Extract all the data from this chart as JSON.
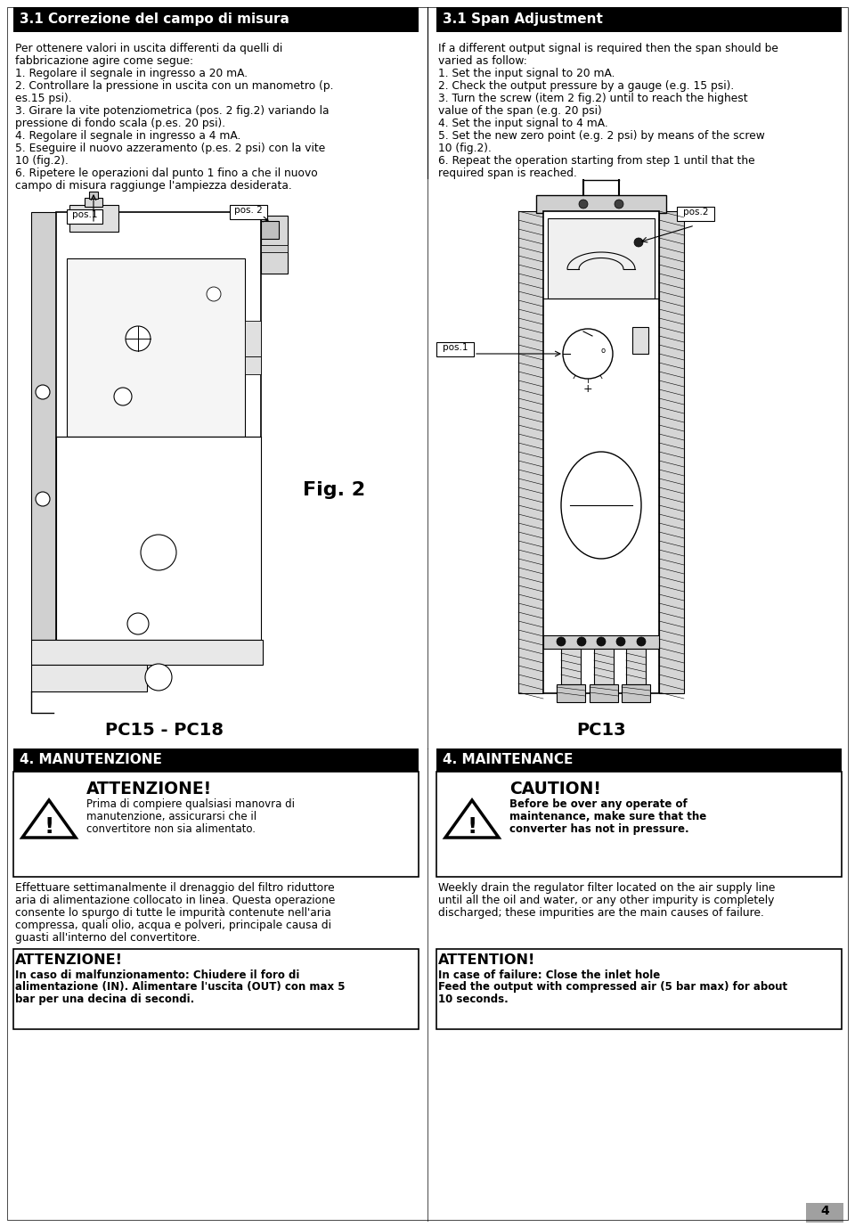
{
  "page_bg": "#ffffff",
  "col1_header": "3.1 Correzione del campo di misura",
  "col2_header": "3.1 Span Adjustment",
  "col1_body_lines": [
    "Per ottenere valori in uscita differenti da quelli di",
    "fabbricazione agire come segue:",
    "1. Regolare il segnale in ingresso a 20 mA.",
    "2. Controllare la pressione in uscita con un manometro (p.",
    "es.15 psi).",
    "3. Girare la vite potenziometrica (pos. 2 fig.2) variando la",
    "pressione di fondo scala (p.es. 20 psi).",
    "4. Regolare il segnale in ingresso a 4 mA.",
    "5. Eseguire il nuovo azzeramento (p.es. 2 psi) con la vite",
    "10 (fig.2).",
    "6. Ripetere le operazioni dal punto 1 fino a che il nuovo",
    "campo di misura raggiunge l'ampiezza desiderata."
  ],
  "col2_body_lines": [
    "If a different output signal is required then the span should be",
    "varied as follow:",
    "1. Set the input signal to 20 mA.",
    "2. Check the output pressure by a gauge (e.g. 15 psi).",
    "3. Turn the screw (item 2 fig.2) until to reach the highest",
    "value of the span (e.g. 20 psi)",
    "4. Set the input signal to 4 mA.",
    "5. Set the new zero point (e.g. 2 psi) by means of the screw",
    "10 (fig.2).",
    "6. Repeat the operation starting from step 1 until that the",
    "required span is reached."
  ],
  "fig2_label": "Fig. 2",
  "pc15_label": "PC15 - PC18",
  "pc13_label": "PC13",
  "maint_col1_header": "4. MANUTENZIONE",
  "maint_col2_header": "4. MAINTENANCE",
  "attenzione_title": "ATTENZIONE!",
  "attenzione_body": "Prima di compiere qualsiasi manovra di\nmanutenzione, assicurarsi che il\nconvertitore non sia alimentato.",
  "caution_title": "CAUTION!",
  "caution_body": "Before be over any operate of\nmaintenance, make sure that the\nconverter has not in pressure.",
  "maint_col1_body_lines": [
    "Effettuare settimanalmente il drenaggio del filtro riduttore",
    "aria di alimentazione collocato in linea. Questa operazione",
    "consente lo spurgo di tutte le impurità contenute nell'aria",
    "compressa, quali olio, acqua e polveri, principale causa di",
    "guasti all'interno del convertitore."
  ],
  "maint_col2_body_lines": [
    "Weekly drain the regulator filter located on the air supply line",
    "until all the oil and water, or any other impurity is completely",
    "discharged; these impurities are the main causes of failure."
  ],
  "attenzione2_title": "ATTENZIONE!",
  "attenzione2_body_lines": [
    "In caso di malfunzionamento: Chiudere il foro di",
    "alimentazione (IN). Alimentare l'uscita (OUT) con max 5",
    "bar per una decina di secondi."
  ],
  "attention2_title": "ATTENTION!",
  "attention2_body_lines": [
    "In case of failure: Close the inlet hole",
    "Feed the output with compressed air (5 bar max) for about",
    "10 seconds."
  ],
  "page_num": "4"
}
